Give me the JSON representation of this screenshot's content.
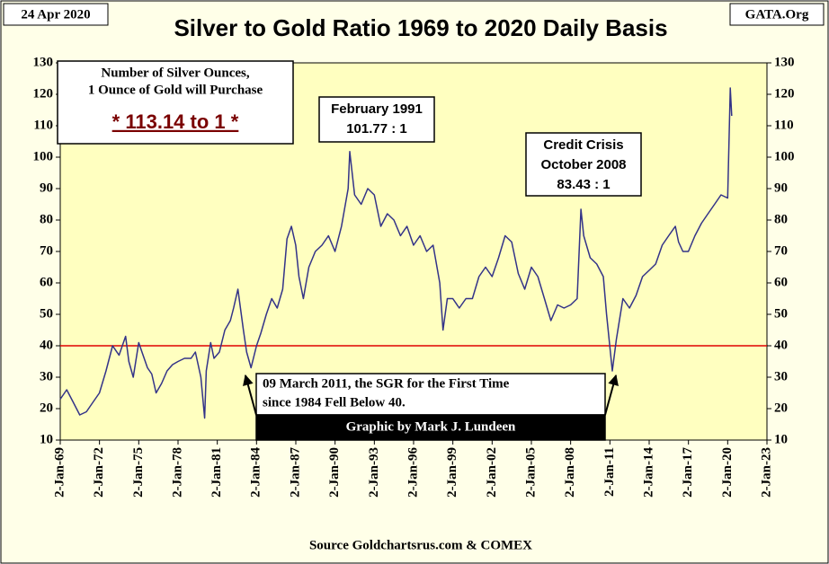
{
  "chart_data": {
    "type": "line",
    "title": "Silver to Gold Ratio 1969 to 2020 Daily Basis",
    "date_label": "24 Apr 2020",
    "site_label": "GATA.Org",
    "source": "Source Goldchartsrus.com & COMEX",
    "credit": "Graphic by Mark J. Lundeen",
    "annotations": {
      "inset": [
        "Number of Silver Ounces,",
        "1 Ounce of Gold will Purchase",
        "* 113.14 to 1 *"
      ],
      "feb1991": [
        "February 1991",
        "101.77 : 1"
      ],
      "oct2008": [
        "Credit Crisis",
        "October 2008",
        "83.43 : 1"
      ],
      "mar2011": [
        "09 March 2011, the SGR for the First Time",
        "since 1984 Fell Below 40."
      ]
    },
    "hline": {
      "value": 40,
      "color": "#e00000"
    },
    "series": [
      {
        "name": "Silver to Gold Ratio",
        "color": "#333388",
        "x": [
          "1969-01-01",
          "1969-07-01",
          "1970-01-01",
          "1970-07-01",
          "1971-01-01",
          "1971-07-01",
          "1972-01-01",
          "1972-07-01",
          "1973-01-01",
          "1973-07-01",
          "1974-01-01",
          "1974-04-01",
          "1974-08-01",
          "1975-01-01",
          "1975-04-01",
          "1975-09-01",
          "1976-01-01",
          "1976-05-01",
          "1976-10-01",
          "1977-03-01",
          "1977-08-01",
          "1978-01-01",
          "1978-07-01",
          "1979-01-01",
          "1979-05-01",
          "1979-10-01",
          "1980-01-15",
          "1980-03-01",
          "1980-07-01",
          "1980-10-01",
          "1981-03-01",
          "1981-08-01",
          "1982-01-01",
          "1982-04-01",
          "1982-08-01",
          "1983-01-01",
          "1983-04-01",
          "1983-08-01",
          "1984-01-01",
          "1984-05-01",
          "1984-10-01",
          "1985-03-01",
          "1985-08-01",
          "1986-01-01",
          "1986-05-01",
          "1986-09-01",
          "1987-01-01",
          "1987-04-01",
          "1987-08-01",
          "1988-01-01",
          "1988-07-01",
          "1989-01-01",
          "1989-07-01",
          "1990-01-01",
          "1990-07-01",
          "1991-01-01",
          "1991-02-15",
          "1991-07-01",
          "1992-01-01",
          "1992-07-01",
          "1993-01-01",
          "1993-07-01",
          "1994-01-01",
          "1994-07-01",
          "1995-01-01",
          "1995-07-01",
          "1996-01-01",
          "1996-07-01",
          "1997-01-01",
          "1997-07-01",
          "1998-01-01",
          "1998-04-01",
          "1998-08-01",
          "1999-01-01",
          "1999-07-01",
          "2000-01-01",
          "2000-07-01",
          "2001-01-01",
          "2001-07-01",
          "2002-01-01",
          "2002-07-01",
          "2003-01-01",
          "2003-07-01",
          "2004-01-01",
          "2004-07-01",
          "2005-01-01",
          "2005-07-01",
          "2006-01-01",
          "2006-07-01",
          "2007-01-01",
          "2007-07-01",
          "2008-01-01",
          "2008-07-01",
          "2008-10-15",
          "2009-01-01",
          "2009-07-01",
          "2010-01-01",
          "2010-07-01",
          "2010-10-01",
          "2011-03-09",
          "2011-07-01",
          "2012-01-01",
          "2012-07-01",
          "2013-01-01",
          "2013-07-01",
          "2014-01-01",
          "2014-07-01",
          "2015-01-01",
          "2015-07-01",
          "2016-01-01",
          "2016-04-01",
          "2016-08-01",
          "2017-01-01",
          "2017-07-01",
          "2018-01-01",
          "2018-07-01",
          "2019-01-01",
          "2019-07-01",
          "2020-01-01",
          "2020-03-15",
          "2020-04-24"
        ],
        "values": [
          23,
          26,
          22,
          18,
          19,
          22,
          25,
          32,
          40,
          37,
          43,
          35,
          30,
          41,
          38,
          33,
          31,
          25,
          28,
          32,
          34,
          35,
          36,
          36,
          38,
          30,
          17,
          32,
          41,
          36,
          38,
          45,
          48,
          52,
          58,
          45,
          38,
          33,
          40,
          44,
          50,
          55,
          52,
          58,
          74,
          78,
          72,
          62,
          55,
          65,
          70,
          72,
          75,
          70,
          78,
          90,
          101.77,
          88,
          85,
          90,
          88,
          78,
          82,
          80,
          75,
          78,
          72,
          75,
          70,
          72,
          60,
          45,
          55,
          55,
          52,
          55,
          55,
          62,
          65,
          62,
          68,
          75,
          73,
          63,
          58,
          65,
          62,
          55,
          48,
          53,
          52,
          53,
          55,
          83.43,
          75,
          68,
          66,
          62,
          50,
          32,
          42,
          55,
          52,
          56,
          62,
          64,
          66,
          72,
          75,
          78,
          73,
          70,
          70,
          75,
          79,
          82,
          85,
          88,
          87,
          122,
          113.14
        ]
      }
    ],
    "xlim": [
      "1969-01-02",
      "2023-01-02"
    ],
    "xticks": [
      {
        "value": "1969-01-02",
        "label": "2-Jan-69"
      },
      {
        "value": "1972-01-02",
        "label": "2-Jan-72"
      },
      {
        "value": "1975-01-02",
        "label": "2-Jan-75"
      },
      {
        "value": "1978-01-02",
        "label": "2-Jan-78"
      },
      {
        "value": "1981-01-02",
        "label": "2-Jan-81"
      },
      {
        "value": "1984-01-02",
        "label": "2-Jan-84"
      },
      {
        "value": "1987-01-02",
        "label": "2-Jan-87"
      },
      {
        "value": "1990-01-02",
        "label": "2-Jan-90"
      },
      {
        "value": "1993-01-02",
        "label": "2-Jan-93"
      },
      {
        "value": "1996-01-02",
        "label": "2-Jan-96"
      },
      {
        "value": "1999-01-02",
        "label": "2-Jan-99"
      },
      {
        "value": "2002-01-02",
        "label": "2-Jan-02"
      },
      {
        "value": "2005-01-02",
        "label": "2-Jan-05"
      },
      {
        "value": "2008-01-02",
        "label": "2-Jan-08"
      },
      {
        "value": "2011-01-02",
        "label": "2-Jan-11"
      },
      {
        "value": "2014-01-02",
        "label": "2-Jan-14"
      },
      {
        "value": "2017-01-02",
        "label": "2-Jan-17"
      },
      {
        "value": "2020-01-02",
        "label": "2-Jan-20"
      },
      {
        "value": "2023-01-02",
        "label": "2-Jan-23"
      }
    ],
    "ylim": [
      10,
      130
    ],
    "yticks": [
      10,
      20,
      30,
      40,
      50,
      60,
      70,
      80,
      90,
      100,
      110,
      120,
      130
    ],
    "y2lim": [
      10,
      130
    ],
    "y2ticks": [
      10,
      20,
      30,
      40,
      50,
      60,
      70,
      80,
      90,
      100,
      110,
      120,
      130
    ],
    "plot_background": "#ffffc0"
  }
}
